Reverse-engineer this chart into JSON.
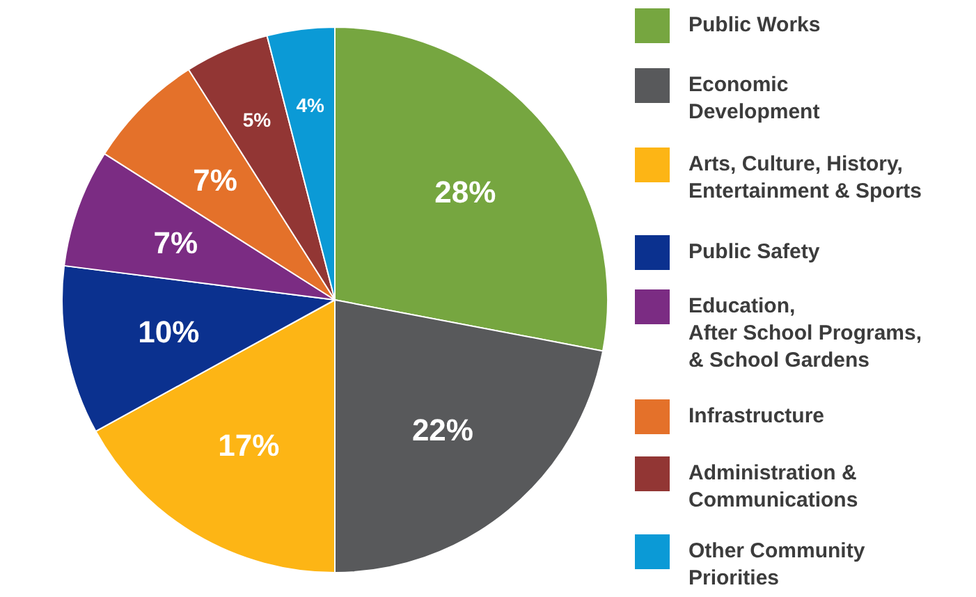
{
  "chart_data": {
    "type": "pie",
    "categories": [
      "Public Works",
      "Economic\nDevelopment",
      "Arts, Culture, History,\nEntertainment & Sports",
      "Public Safety",
      "Education,\nAfter School Programs,\n& School Gardens",
      "Infrastructure",
      "Administration &\nCommunications",
      "Other Community\nPriorities"
    ],
    "values": [
      28,
      22,
      17,
      10,
      7,
      7,
      5,
      4
    ],
    "colors": [
      "#76a640",
      "#58595b",
      "#fdb515",
      "#0b318f",
      "#7b2c83",
      "#e4712a",
      "#923634",
      "#0b9ad6"
    ],
    "value_labels": [
      "28%",
      "22%",
      "17%",
      "10%",
      "7%",
      "7%",
      "5%",
      "4%"
    ],
    "legend": "right"
  }
}
